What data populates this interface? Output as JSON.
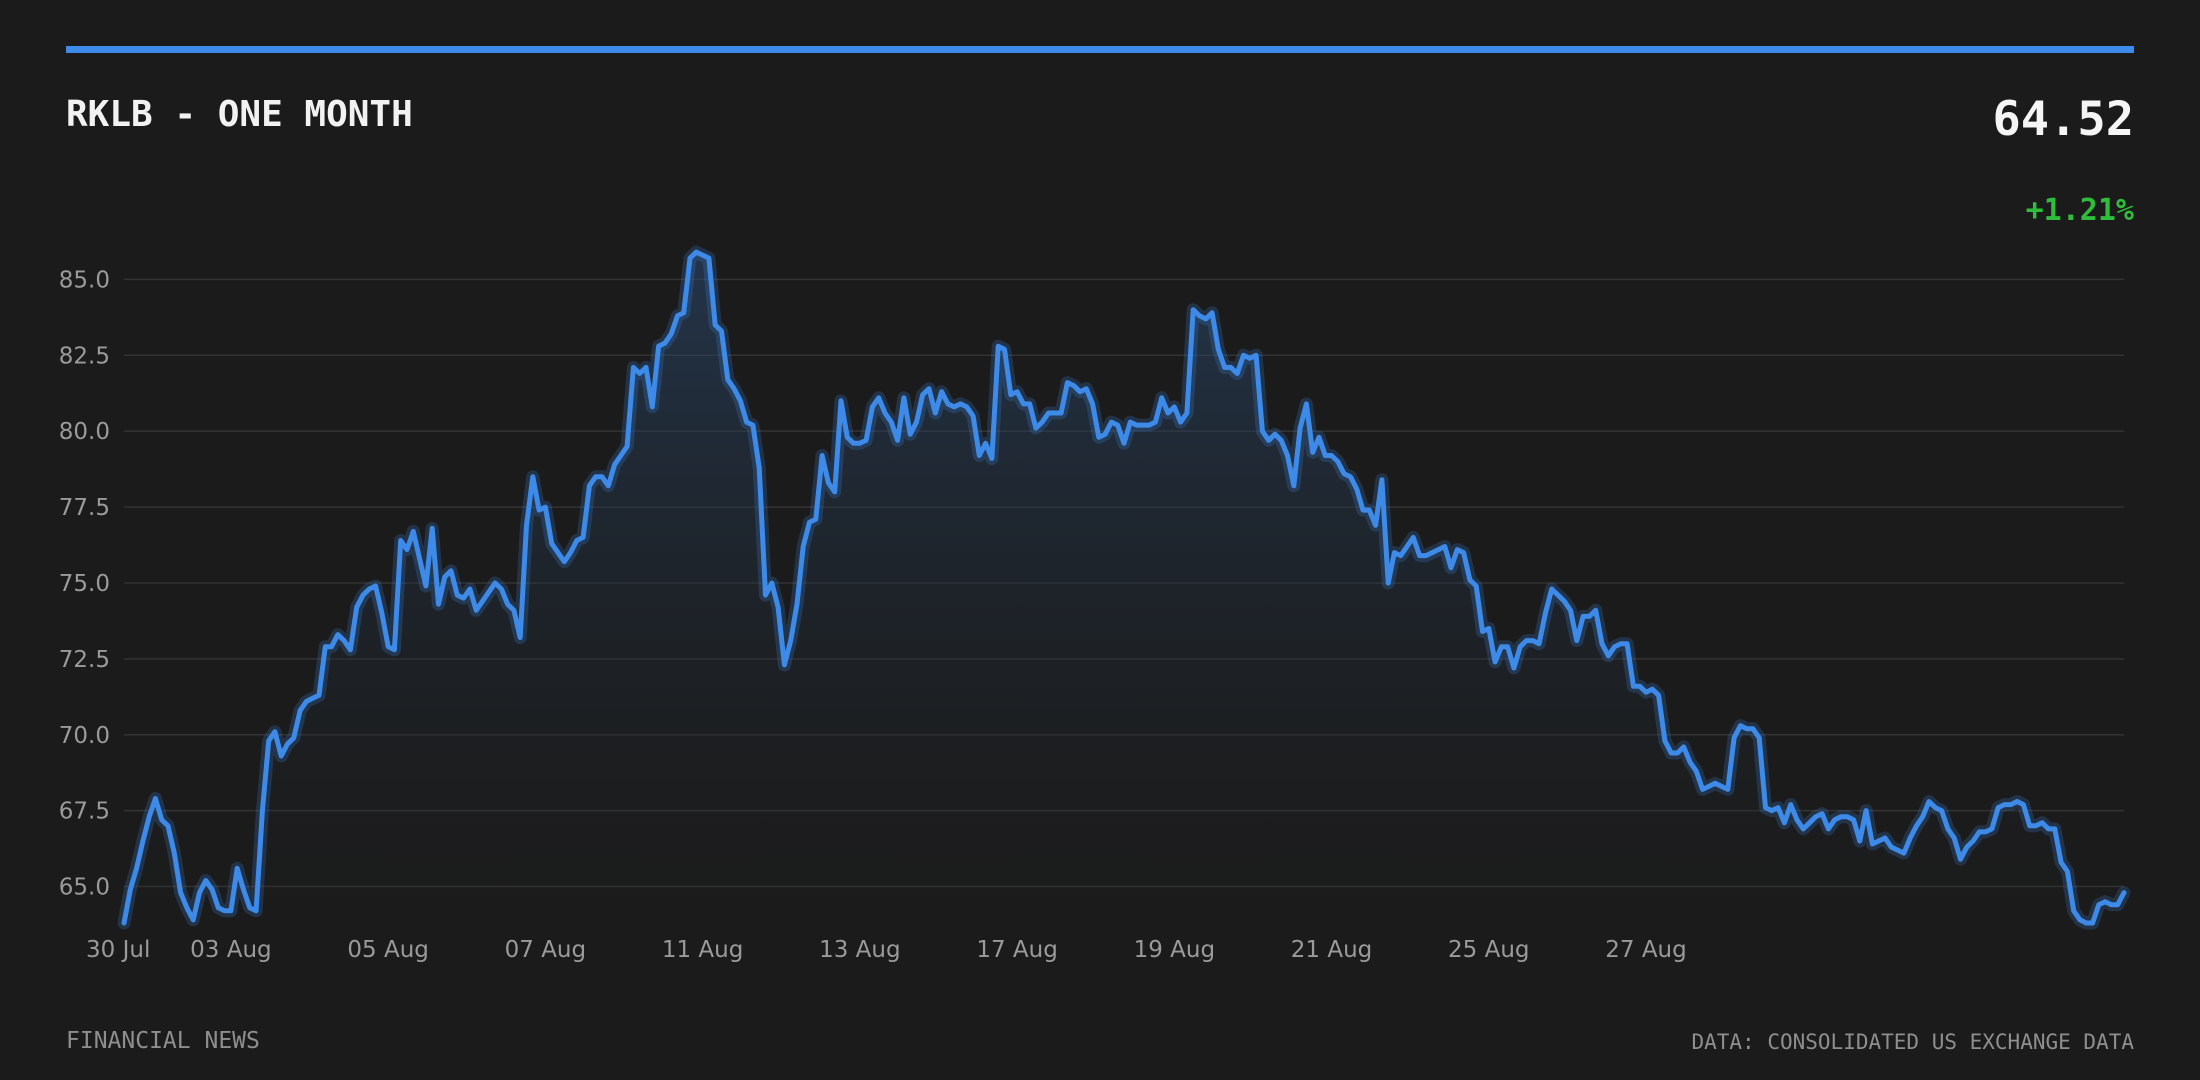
{
  "header": {
    "title": "RKLB - ONE MONTH",
    "price": "64.52",
    "change": "+1.21%"
  },
  "footer": {
    "left": "FINANCIAL NEWS",
    "right": "DATA: CONSOLIDATED US EXCHANGE DATA"
  },
  "colors": {
    "background": "#1b1b1b",
    "accent": "#3d8ae8",
    "positive": "#2fbd3c",
    "text": "#f2f2f2",
    "muted": "#9a9a9a"
  },
  "chart_data": {
    "type": "line",
    "grid": true,
    "legend": "none",
    "ylim": [
      63.7,
      86.1
    ],
    "yticks": [
      "65.0",
      "67.5",
      "70.0",
      "72.5",
      "75.0",
      "77.5",
      "80.0",
      "82.5",
      "85.0"
    ],
    "yticks_values": [
      65.0,
      67.5,
      70.0,
      72.5,
      75.0,
      77.5,
      80.0,
      82.5,
      85.0
    ],
    "xticks": [
      {
        "label": "30 Jul",
        "index": 0
      },
      {
        "label": "03 Aug",
        "index": 17
      },
      {
        "label": "05 Aug",
        "index": 42
      },
      {
        "label": "07 Aug",
        "index": 67
      },
      {
        "label": "11 Aug",
        "index": 92
      },
      {
        "label": "13 Aug",
        "index": 117
      },
      {
        "label": "17 Aug",
        "index": 142
      },
      {
        "label": "19 Aug",
        "index": 167
      },
      {
        "label": "21 Aug",
        "index": 192
      },
      {
        "label": "25 Aug",
        "index": 217
      },
      {
        "label": "27 Aug",
        "index": 242
      }
    ],
    "series": [
      {
        "values": [
          63.8,
          64.9,
          65.6,
          66.5,
          67.3,
          67.9,
          67.2,
          67.0,
          66.1,
          64.8,
          64.3,
          63.9,
          64.8,
          65.2,
          64.9,
          64.3,
          64.2,
          64.2,
          65.6,
          64.9,
          64.3,
          64.2,
          67.5,
          69.8,
          70.1,
          69.3,
          69.7,
          69.9,
          70.8,
          71.1,
          71.2,
          71.3,
          72.9,
          72.9,
          73.3,
          73.1,
          72.8,
          74.2,
          74.6,
          74.8,
          74.9,
          74.0,
          72.9,
          72.8,
          76.4,
          76.1,
          76.7,
          75.8,
          74.9,
          76.8,
          74.3,
          75.2,
          75.4,
          74.6,
          74.5,
          74.8,
          74.1,
          74.4,
          74.7,
          75.0,
          74.8,
          74.3,
          74.1,
          73.2,
          76.9,
          78.5,
          77.4,
          77.5,
          76.3,
          76.0,
          75.7,
          76.0,
          76.4,
          76.5,
          78.2,
          78.5,
          78.5,
          78.2,
          78.9,
          79.2,
          79.5,
          82.1,
          81.9,
          82.1,
          80.8,
          82.8,
          82.9,
          83.2,
          83.8,
          83.9,
          85.7,
          85.9,
          85.8,
          85.7,
          83.5,
          83.3,
          81.7,
          81.4,
          81.0,
          80.3,
          80.2,
          78.8,
          74.6,
          75.0,
          74.2,
          72.3,
          73.1,
          74.3,
          76.2,
          77.0,
          77.1,
          79.2,
          78.3,
          78.0,
          81.0,
          79.8,
          79.6,
          79.6,
          79.7,
          80.8,
          81.1,
          80.6,
          80.3,
          79.7,
          81.1,
          79.9,
          80.3,
          81.2,
          81.4,
          80.6,
          81.3,
          80.9,
          80.8,
          80.9,
          80.8,
          80.5,
          79.2,
          79.6,
          79.1,
          82.8,
          82.7,
          81.2,
          81.3,
          80.9,
          80.9,
          80.1,
          80.3,
          80.6,
          80.6,
          80.6,
          81.6,
          81.5,
          81.3,
          81.4,
          80.9,
          79.8,
          79.9,
          80.3,
          80.2,
          79.6,
          80.3,
          80.2,
          80.2,
          80.2,
          80.3,
          81.1,
          80.6,
          80.8,
          80.3,
          80.6,
          84.0,
          83.8,
          83.7,
          83.9,
          82.7,
          82.1,
          82.1,
          81.9,
          82.5,
          82.4,
          82.5,
          80.0,
          79.7,
          79.9,
          79.7,
          79.2,
          78.2,
          80.1,
          80.9,
          79.3,
          79.8,
          79.2,
          79.2,
          79.0,
          78.6,
          78.5,
          78.1,
          77.4,
          77.4,
          76.9,
          78.4,
          75.0,
          76.0,
          75.9,
          76.2,
          76.5,
          75.9,
          75.9,
          76.0,
          76.1,
          76.2,
          75.5,
          76.1,
          76.0,
          75.1,
          74.9,
          73.4,
          73.5,
          72.4,
          72.9,
          72.9,
          72.2,
          72.9,
          73.1,
          73.1,
          73.0,
          74.0,
          74.8,
          74.6,
          74.4,
          74.1,
          73.1,
          73.9,
          73.9,
          74.1,
          73.0,
          72.6,
          72.9,
          73.0,
          73.0,
          71.6,
          71.6,
          71.4,
          71.5,
          71.3,
          69.8,
          69.4,
          69.4,
          69.6,
          69.1,
          68.8,
          68.2,
          68.3,
          68.4,
          68.3,
          68.2,
          69.9,
          70.3,
          70.2,
          70.2,
          69.9,
          67.6,
          67.5,
          67.6,
          67.1,
          67.7,
          67.2,
          66.9,
          67.1,
          67.3,
          67.4,
          66.9,
          67.2,
          67.3,
          67.3,
          67.2,
          66.5,
          67.5,
          66.4,
          66.5,
          66.6,
          66.3,
          66.2,
          66.1,
          66.6,
          67.0,
          67.3,
          67.8,
          67.6,
          67.5,
          66.9,
          66.6,
          65.9,
          66.3,
          66.5,
          66.8,
          66.8,
          66.9,
          67.6,
          67.7,
          67.7,
          67.8,
          67.7,
          67.0,
          67.0,
          67.1,
          66.9,
          66.9,
          65.8,
          65.5,
          64.2,
          63.9,
          63.8,
          63.8,
          64.4,
          64.5,
          64.4,
          64.4,
          64.8
        ]
      }
    ]
  }
}
